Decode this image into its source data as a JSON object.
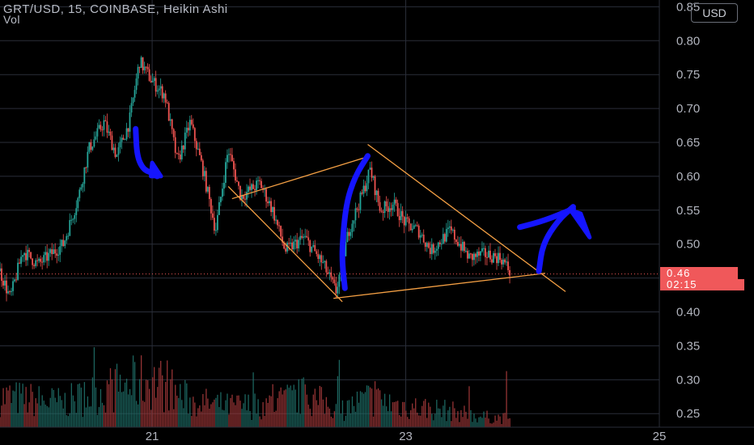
{
  "header": {
    "title": "GRT/USD, 15, COINBASE, Heikin Ashi",
    "volume_label": "Vol",
    "currency": "USD"
  },
  "price_badge": "0.46",
  "countdown_badge": "02:15",
  "colors": {
    "up": "#26a69a",
    "down": "#ef5350",
    "grid": "#2a2e39",
    "axis_text": "#b2b5be",
    "trendline": "#f5a044",
    "annotation": "#1515ff"
  },
  "chart_data": {
    "type": "candlestick",
    "chart_style": "Heikin Ashi",
    "symbol": "GRT/USD",
    "interval": "15",
    "exchange": "COINBASE",
    "y_axis": {
      "range": [
        0.23,
        0.86
      ],
      "ticks": [
        0.25,
        0.3,
        0.35,
        0.4,
        0.45,
        0.5,
        0.55,
        0.6,
        0.65,
        0.7,
        0.75,
        0.8,
        0.85
      ],
      "tick_labels": [
        "0.25",
        "0.30",
        "0.35",
        "0.40",
        "0.45",
        "0.50",
        "0.55",
        "0.60",
        "0.65",
        "0.70",
        "0.75",
        "0.80",
        "0.85"
      ]
    },
    "x_axis": {
      "range": [
        19.8,
        25.0
      ],
      "ticks": [
        21,
        23,
        25
      ],
      "tick_labels": [
        "21",
        "23",
        "25"
      ]
    },
    "last_price": 0.46,
    "grid": true,
    "price_path": [
      [
        19.8,
        0.46
      ],
      [
        19.88,
        0.42
      ],
      [
        19.98,
        0.49
      ],
      [
        20.1,
        0.47
      ],
      [
        20.3,
        0.5
      ],
      [
        20.42,
        0.57
      ],
      [
        20.5,
        0.64
      ],
      [
        20.62,
        0.68
      ],
      [
        20.72,
        0.63
      ],
      [
        20.82,
        0.68
      ],
      [
        20.9,
        0.77
      ],
      [
        21.0,
        0.74
      ],
      [
        21.1,
        0.72
      ],
      [
        21.2,
        0.62
      ],
      [
        21.3,
        0.68
      ],
      [
        21.4,
        0.61
      ],
      [
        21.5,
        0.52
      ],
      [
        21.6,
        0.64
      ],
      [
        21.7,
        0.57
      ],
      [
        21.85,
        0.59
      ],
      [
        21.95,
        0.55
      ],
      [
        22.05,
        0.49
      ],
      [
        22.2,
        0.51
      ],
      [
        22.35,
        0.47
      ],
      [
        22.45,
        0.43
      ],
      [
        22.55,
        0.52
      ],
      [
        22.65,
        0.57
      ],
      [
        22.72,
        0.61
      ],
      [
        22.8,
        0.55
      ],
      [
        22.9,
        0.56
      ],
      [
        23.0,
        0.53
      ],
      [
        23.1,
        0.52
      ],
      [
        23.2,
        0.49
      ],
      [
        23.35,
        0.52
      ],
      [
        23.5,
        0.48
      ],
      [
        23.62,
        0.485
      ],
      [
        23.75,
        0.48
      ],
      [
        23.82,
        0.46
      ]
    ],
    "volume": {
      "scale_max": 1.0,
      "profile": [
        [
          19.8,
          0.35
        ],
        [
          20.3,
          0.28
        ],
        [
          20.7,
          0.45
        ],
        [
          21.0,
          0.55
        ],
        [
          21.3,
          0.3
        ],
        [
          21.6,
          0.24
        ],
        [
          21.9,
          0.26
        ],
        [
          22.2,
          0.36
        ],
        [
          22.5,
          0.2
        ],
        [
          22.7,
          0.33
        ],
        [
          23.0,
          0.24
        ],
        [
          23.3,
          0.2
        ],
        [
          23.6,
          0.12
        ],
        [
          23.82,
          0.1
        ]
      ]
    },
    "trendlines": [
      {
        "from": [
          21.63,
          0.567
        ],
        "to": [
          22.72,
          0.63
        ]
      },
      {
        "from": [
          21.6,
          0.585
        ],
        "to": [
          22.5,
          0.415
        ]
      },
      {
        "from": [
          22.43,
          0.42
        ],
        "to": [
          24.1,
          0.457
        ]
      },
      {
        "from": [
          22.7,
          0.647
        ],
        "to": [
          24.26,
          0.43
        ]
      }
    ],
    "current_price_line": 0.456,
    "drawings": [
      {
        "name": "curved-arrow-down",
        "points": [
          [
            20.87,
            0.67
          ],
          [
            20.88,
            0.63
          ],
          [
            20.93,
            0.61
          ],
          [
            21.0,
            0.605
          ],
          [
            21.04,
            0.6
          ]
        ],
        "tip": [
          [
            21.0,
            0.62
          ],
          [
            21.07,
            0.6
          ],
          [
            20.99,
            0.6
          ]
        ]
      },
      {
        "name": "rising-wave",
        "points": [
          [
            22.52,
            0.435
          ],
          [
            22.5,
            0.47
          ],
          [
            22.5,
            0.5
          ],
          [
            22.53,
            0.56
          ],
          [
            22.6,
            0.6
          ],
          [
            22.7,
            0.63
          ]
        ]
      },
      {
        "name": "rising-arrow",
        "points": [
          [
            24.05,
            0.46
          ],
          [
            24.08,
            0.5
          ],
          [
            24.2,
            0.535
          ],
          [
            24.32,
            0.555
          ]
        ],
        "tip": [
          [
            24.3,
            0.55
          ],
          [
            24.45,
            0.51
          ],
          [
            24.38,
            0.545
          ]
        ]
      },
      {
        "name": "arrow-extension",
        "points": [
          [
            23.9,
            0.525
          ],
          [
            24.1,
            0.535
          ],
          [
            24.32,
            0.552
          ]
        ]
      }
    ]
  }
}
